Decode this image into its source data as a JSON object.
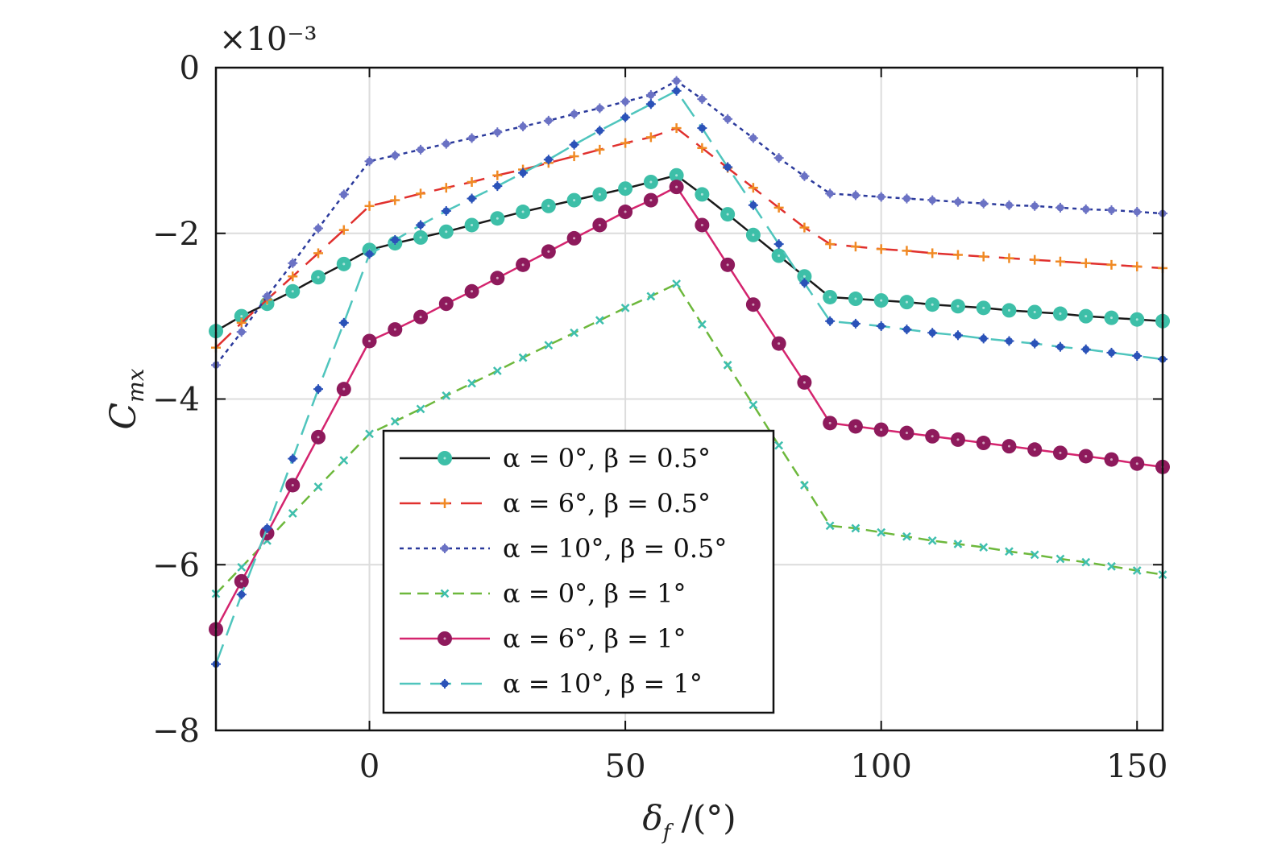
{
  "chart_data": {
    "type": "line",
    "xlabel": "δ_f /(°)",
    "xlabel_main": "δ",
    "xlabel_sub": "f",
    "xlabel_unit": " /(°)",
    "ylabel": "C_mx",
    "ylabel_main": "C",
    "ylabel_sub": "mx",
    "y_multiplier": "×10⁻³",
    "xlim": [
      -30,
      155
    ],
    "ylim": [
      -8,
      0
    ],
    "xticks": [
      0,
      50,
      100,
      150
    ],
    "xtick_labels": [
      "0",
      "50",
      "100",
      "150"
    ],
    "yticks": [
      0,
      -2,
      -4,
      -6,
      -8
    ],
    "ytick_labels": [
      "0",
      "−2",
      "−4",
      "−6",
      "−8"
    ],
    "grid": true,
    "legend_position": "lower-center",
    "x": [
      -30,
      -25,
      -20,
      -15,
      -10,
      -5,
      0,
      5,
      10,
      15,
      20,
      25,
      30,
      35,
      40,
      45,
      50,
      55,
      60,
      65,
      70,
      75,
      80,
      85,
      90,
      95,
      100,
      105,
      110,
      115,
      120,
      125,
      130,
      135,
      140,
      145,
      150,
      155
    ],
    "series": [
      {
        "name": "α = 0°, β = 0.5°",
        "line_color": "#1a1a1a",
        "marker_color": "#3dbfa8",
        "marker": "circle-large",
        "dash": "solid",
        "values": [
          -3.18,
          -3.0,
          -2.85,
          -2.7,
          -2.53,
          -2.37,
          -2.2,
          -2.12,
          -2.05,
          -1.98,
          -1.9,
          -1.82,
          -1.74,
          -1.67,
          -1.6,
          -1.53,
          -1.46,
          -1.38,
          -1.3,
          -1.53,
          -1.77,
          -2.02,
          -2.27,
          -2.52,
          -2.77,
          -2.79,
          -2.81,
          -2.83,
          -2.86,
          -2.88,
          -2.9,
          -2.93,
          -2.95,
          -2.97,
          -3.0,
          -3.02,
          -3.04,
          -3.06
        ]
      },
      {
        "name": "α = 6°, β = 0.5°",
        "line_color": "#e0302e",
        "marker_color": "#f08a24",
        "marker": "plus",
        "dash": "long-dash",
        "values": [
          -3.38,
          -3.08,
          -2.8,
          -2.52,
          -2.24,
          -1.96,
          -1.67,
          -1.6,
          -1.52,
          -1.45,
          -1.38,
          -1.3,
          -1.23,
          -1.15,
          -1.07,
          -0.99,
          -0.91,
          -0.84,
          -0.73,
          -0.97,
          -1.21,
          -1.45,
          -1.69,
          -1.93,
          -2.13,
          -2.16,
          -2.19,
          -2.21,
          -2.24,
          -2.26,
          -2.28,
          -2.3,
          -2.32,
          -2.34,
          -2.36,
          -2.38,
          -2.4,
          -2.42
        ]
      },
      {
        "name": "α = 10°, β = 0.5°",
        "line_color": "#2b3a9c",
        "marker_color": "#6b72c4",
        "marker": "star",
        "dash": "dotted",
        "values": [
          -3.59,
          -3.19,
          -2.76,
          -2.36,
          -1.94,
          -1.53,
          -1.13,
          -1.06,
          -0.99,
          -0.92,
          -0.85,
          -0.78,
          -0.71,
          -0.64,
          -0.56,
          -0.49,
          -0.41,
          -0.33,
          -0.16,
          -0.38,
          -0.62,
          -0.85,
          -1.09,
          -1.31,
          -1.52,
          -1.54,
          -1.56,
          -1.58,
          -1.6,
          -1.62,
          -1.64,
          -1.66,
          -1.67,
          -1.69,
          -1.71,
          -1.72,
          -1.74,
          -1.76
        ]
      },
      {
        "name": "α = 0°, β = 1°",
        "line_color": "#6db83c",
        "marker_color": "#3fbfae",
        "marker": "x",
        "dash": "dashed",
        "values": [
          -6.35,
          -6.03,
          -5.71,
          -5.38,
          -5.06,
          -4.74,
          -4.42,
          -4.27,
          -4.12,
          -3.96,
          -3.81,
          -3.66,
          -3.5,
          -3.35,
          -3.2,
          -3.05,
          -2.9,
          -2.76,
          -2.61,
          -3.1,
          -3.59,
          -4.07,
          -4.56,
          -5.04,
          -5.53,
          -5.56,
          -5.61,
          -5.66,
          -5.71,
          -5.75,
          -5.79,
          -5.84,
          -5.88,
          -5.93,
          -5.97,
          -6.02,
          -6.07,
          -6.12
        ]
      },
      {
        "name": "α = 6°, β = 1°",
        "line_color": "#d4246e",
        "marker_color": "#8e1a5c",
        "marker": "circle-large",
        "dash": "solid",
        "values": [
          -6.78,
          -6.2,
          -5.62,
          -5.04,
          -4.46,
          -3.88,
          -3.3,
          -3.16,
          -3.01,
          -2.85,
          -2.7,
          -2.54,
          -2.38,
          -2.22,
          -2.06,
          -1.9,
          -1.74,
          -1.6,
          -1.44,
          -1.9,
          -2.38,
          -2.86,
          -3.33,
          -3.8,
          -4.29,
          -4.33,
          -4.37,
          -4.41,
          -4.45,
          -4.49,
          -4.53,
          -4.57,
          -4.61,
          -4.65,
          -4.69,
          -4.73,
          -4.78,
          -4.82
        ]
      },
      {
        "name": "α = 10°, β = 1°",
        "line_color": "#4fc5bd",
        "marker_color": "#2b52b8",
        "marker": "star",
        "dash": "long-dash",
        "values": [
          -7.2,
          -6.36,
          -5.56,
          -4.72,
          -3.88,
          -3.08,
          -2.25,
          -2.08,
          -1.9,
          -1.73,
          -1.58,
          -1.43,
          -1.27,
          -1.11,
          -0.93,
          -0.76,
          -0.6,
          -0.44,
          -0.28,
          -0.73,
          -1.2,
          -1.66,
          -2.13,
          -2.6,
          -3.06,
          -3.09,
          -3.12,
          -3.16,
          -3.2,
          -3.23,
          -3.27,
          -3.3,
          -3.33,
          -3.37,
          -3.4,
          -3.44,
          -3.48,
          -3.52
        ]
      }
    ]
  }
}
